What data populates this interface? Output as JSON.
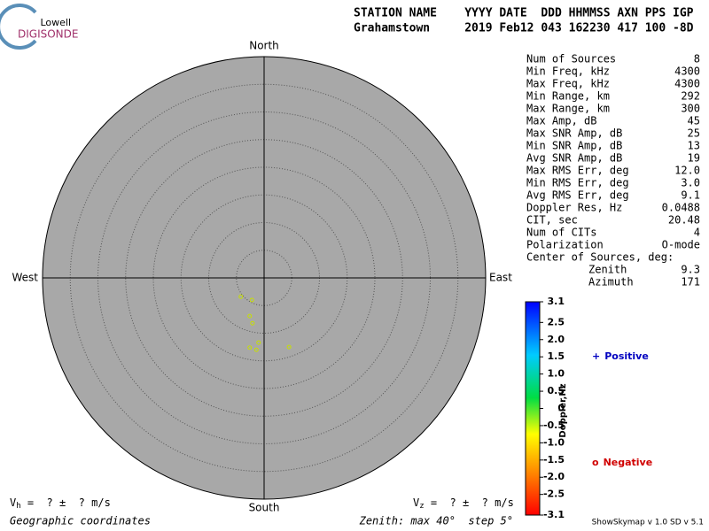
{
  "logo": {
    "top": "Lowell",
    "main": "DIGISONDE"
  },
  "header": {
    "line1": "STATION NAME    YYYY DATE  DDD HHMMSS AXN PPS IGP",
    "line2": "Grahamstown     2019 Feb12 043 162230 417 100 -8D"
  },
  "stats": [
    [
      "Num of Sources",
      8
    ],
    [
      "Min Freq, kHz",
      4300
    ],
    [
      "Max Freq, kHz",
      4300
    ],
    [
      "Min Range, km",
      292
    ],
    [
      "Max Range, km",
      300
    ],
    [
      "Max Amp, dB",
      45
    ],
    [
      "Max SNR Amp, dB",
      25
    ],
    [
      "Min SNR Amp, dB",
      13
    ],
    [
      "Avg SNR Amp, dB",
      19
    ],
    [
      "Max RMS Err, deg",
      "12.0"
    ],
    [
      "Min RMS Err, deg",
      "3.0"
    ],
    [
      "Avg RMS Err, deg",
      9.1
    ],
    [
      "Doppler Res, Hz",
      0.0488
    ],
    [
      "CIT, sec",
      20.48
    ],
    [
      "Num of CITs",
      4
    ],
    [
      "Polarization",
      "O-mode"
    ]
  ],
  "center": {
    "title": "Center of Sources, deg:",
    "rows": [
      [
        "Zenith",
        9.3
      ],
      [
        "Azimuth",
        171
      ]
    ]
  },
  "chart_data": {
    "type": "scatter",
    "directions": {
      "north": "North",
      "south": "South",
      "east": "East",
      "west": "West"
    },
    "x": [
      -4.2,
      -2.2,
      -2.6,
      -2.1,
      -1.0,
      -2.6,
      -1.4,
      4.5
    ],
    "y": [
      -3.4,
      -4.0,
      -6.9,
      -8.2,
      -11.7,
      -12.6,
      -13.0,
      -12.5
    ],
    "color": "#c8e000",
    "xlim": [
      -40,
      40
    ],
    "ylim": [
      -40,
      40
    ],
    "rticks": [
      5,
      10,
      15,
      20,
      25,
      30,
      35
    ],
    "colorbar": {
      "label": "Doppler,Hz",
      "zlim": [
        -3.1,
        3.1
      ],
      "ticks": [
        3.1,
        2.5,
        {
          "value": 2,
          "label": "2.0"
        },
        1.5,
        {
          "value": 1,
          "label": "1.0"
        },
        0.5,
        0,
        -0.5,
        {
          "value": -1,
          "label": "-1.0"
        },
        -1.5,
        {
          "value": -2,
          "label": "-2.0"
        },
        -2.5,
        -3.1
      ]
    },
    "legend": [
      {
        "symbol": "+",
        "name": "Positive",
        "color": "#0000c0"
      },
      {
        "symbol": "o",
        "name": "Negative",
        "color": "#d00000"
      }
    ]
  },
  "footer": {
    "vh": {
      "symbol": "V",
      "sub": "h",
      "text": " =  ? ±  ? m/s"
    },
    "vz": {
      "symbol": "V",
      "sub": "z",
      "text": " =  ? ±  ? m/s"
    },
    "coords": "Geographic coordinates",
    "zenith": "Zenith: max 40°  step 5°",
    "version": "ShowSkymap v 1.0  SD v 5.1"
  }
}
